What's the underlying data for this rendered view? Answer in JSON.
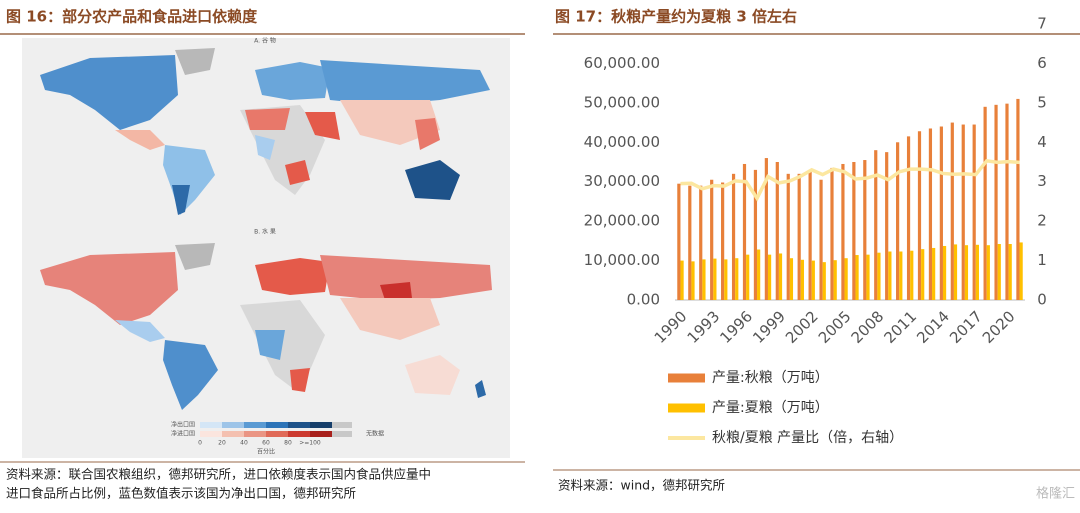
{
  "figure16": {
    "title": "图 16：部分农产品和食品进口依赖度",
    "panel_a": "A. 谷 物",
    "panel_b": "B. 水 果",
    "legend": {
      "export_label": "净出口国",
      "import_label": "净进口国",
      "scale": [
        "0",
        "20",
        "40",
        "60",
        "80",
        ">=100"
      ],
      "no_data": "无数据",
      "axis_label": "百分比"
    },
    "source": [
      "资料来源：联合国农粮组织，德邦研究所，进口依赖度表示国内食品供应量中",
      "进口食品所占比例，蓝色数值表示该国为净出口国，德邦研究所"
    ]
  },
  "chart_data": {
    "type": "bar",
    "title": "图 17：秋粮产量约为夏粮 3 倍左右",
    "categories": [
      "1990",
      null,
      null,
      "1993",
      null,
      null,
      "1996",
      null,
      null,
      "1999",
      null,
      null,
      "2002",
      null,
      null,
      "2005",
      null,
      null,
      "2008",
      null,
      null,
      "2011",
      null,
      null,
      "2014",
      null,
      null,
      "2017",
      null,
      null,
      "2020",
      null
    ],
    "series": [
      {
        "name": "产量:秋粮（万吨）",
        "color": "#e8803a",
        "values": [
          29500,
          29000,
          29000,
          30500,
          29800,
          32000,
          34500,
          33000,
          36000,
          35000,
          32000,
          32000,
          33000,
          30500,
          33500,
          34500,
          35000,
          35500,
          38000,
          37500,
          40000,
          41500,
          42800,
          43500,
          44000,
          45000,
          44500,
          44500,
          49000,
          49500,
          49800,
          51000
        ]
      },
      {
        "name": "产量:夏粮（万吨）",
        "color": "#ffc000",
        "values": [
          10000,
          9800,
          10300,
          10500,
          10300,
          10600,
          11500,
          12800,
          11500,
          11800,
          10600,
          10200,
          10000,
          9600,
          10100,
          10600,
          11400,
          11500,
          12000,
          12300,
          12300,
          12500,
          12900,
          13200,
          13700,
          14100,
          13900,
          14000,
          13900,
          14200,
          14200,
          14600
        ]
      },
      {
        "name": "秋粮/夏粮 产量比（倍，右轴）",
        "color": "#fce7a0",
        "axis": "y2",
        "type": "line",
        "values": [
          2.95,
          2.96,
          2.82,
          2.9,
          2.89,
          3.02,
          3.0,
          2.58,
          3.13,
          2.97,
          3.02,
          3.14,
          3.3,
          3.18,
          3.32,
          3.25,
          3.07,
          3.09,
          3.17,
          3.05,
          3.25,
          3.32,
          3.32,
          3.3,
          3.21,
          3.19,
          3.2,
          3.18,
          3.53,
          3.49,
          3.51,
          3.49
        ]
      }
    ],
    "ylim": [
      0,
      70000
    ],
    "yticks": [
      {
        "value": 0,
        "label": "0.00"
      },
      {
        "value": 10000,
        "label": "10,000.00"
      },
      {
        "value": 20000,
        "label": "20,000.00"
      },
      {
        "value": 30000,
        "label": "30,000.00"
      },
      {
        "value": 40000,
        "label": "40,000.00"
      },
      {
        "value": 50000,
        "label": "50,000.00"
      },
      {
        "value": 60000,
        "label": "60,000.00"
      }
    ],
    "y2lim": [
      0,
      7
    ],
    "y2ticks": [
      0,
      1,
      2,
      3,
      4,
      5,
      6,
      7
    ],
    "source": "资料来源：wind，德邦研究所"
  },
  "watermark": "格隆汇"
}
